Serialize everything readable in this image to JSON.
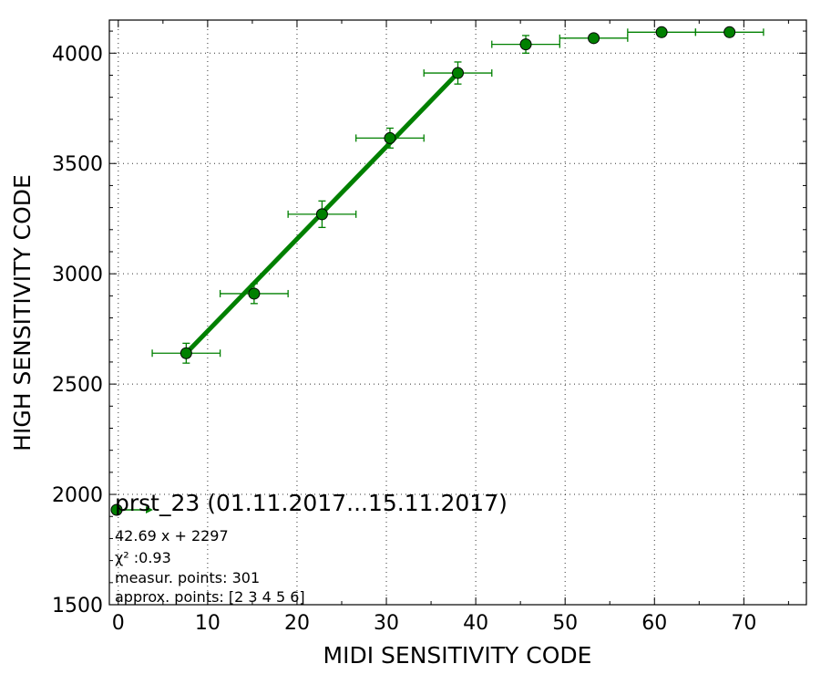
{
  "chart_data": {
    "type": "scatter",
    "xlabel": "MIDI SENSITIVITY CODE",
    "ylabel": "HIGH SENSITIVITY CODE",
    "xlim": [
      -1,
      77
    ],
    "ylim": [
      1500,
      4150
    ],
    "x_ticks": [
      0,
      10,
      20,
      30,
      40,
      50,
      60,
      70
    ],
    "y_ticks": [
      1500,
      2000,
      2500,
      3000,
      3500,
      4000
    ],
    "grid": true,
    "color": "#008000",
    "points": [
      {
        "x": 7.6,
        "y": 2640,
        "xerr": 3.8,
        "yerr": 45
      },
      {
        "x": 15.2,
        "y": 2910,
        "xerr": 3.8,
        "yerr": 45
      },
      {
        "x": 22.8,
        "y": 3270,
        "xerr": 3.8,
        "yerr": 60
      },
      {
        "x": 30.4,
        "y": 3615,
        "xerr": 3.8,
        "yerr": 45
      },
      {
        "x": 38.0,
        "y": 3910,
        "xerr": 3.8,
        "yerr": 50
      },
      {
        "x": 45.6,
        "y": 4040,
        "xerr": 3.8,
        "yerr": 40
      },
      {
        "x": 53.2,
        "y": 4068,
        "xerr": 3.8,
        "yerr": 10
      },
      {
        "x": 60.8,
        "y": 4095,
        "xerr": 3.8,
        "yerr": 8
      },
      {
        "x": 68.4,
        "y": 4095,
        "xerr": 3.8,
        "yerr": 8
      }
    ],
    "fit_line": {
      "x": [
        7.6,
        38.0
      ],
      "y": [
        2640,
        3910
      ]
    },
    "legend": {
      "title": "prst_23 (01.11.2017...15.11.2017)",
      "equation": "42.69 x + 2297",
      "chi2_label": "χ² :0.93",
      "measur_points": "measur. points: 301",
      "approx_points": "approx. points: [2 3 4 5 6]"
    }
  }
}
